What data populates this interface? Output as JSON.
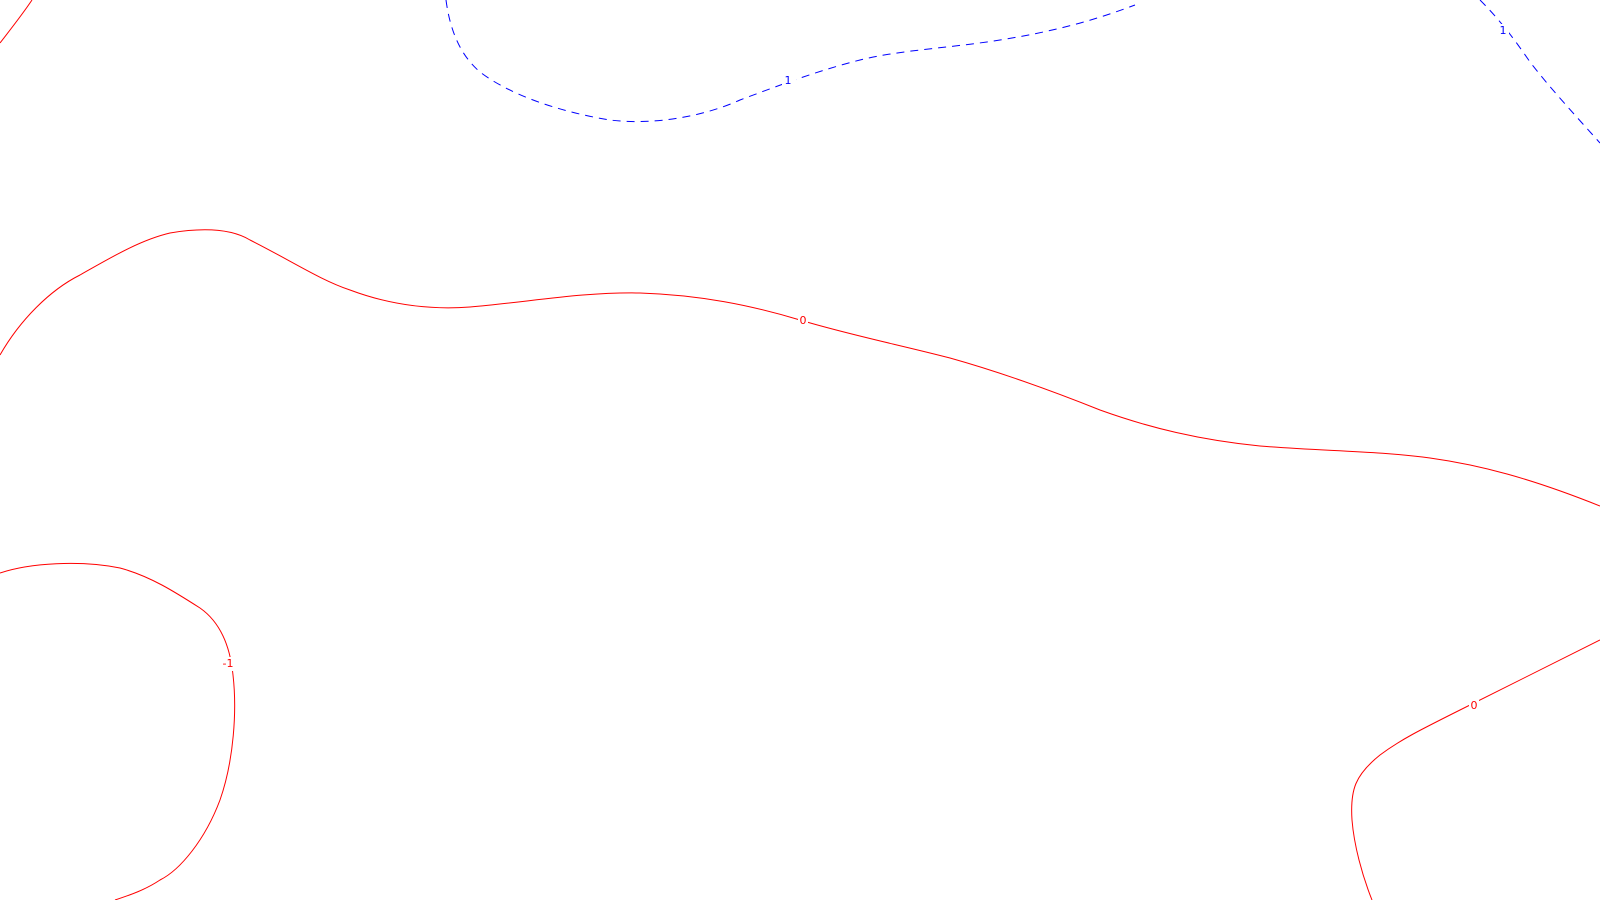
{
  "colors": {
    "background": "#ffffff",
    "positive_contour": "#ff0000",
    "negative_contour": "#0000ff"
  },
  "contours": [
    {
      "id": "contour-red-0-top-left-corner",
      "color_key": "positive_contour",
      "style": "solid"
    },
    {
      "id": "contour-red-0-main",
      "color_key": "positive_contour",
      "style": "solid",
      "label": "0"
    },
    {
      "id": "contour-red-minus1-bottom-left",
      "color_key": "positive_contour",
      "style": "solid",
      "label": "-1"
    },
    {
      "id": "contour-red-0-bottom-right",
      "color_key": "positive_contour",
      "style": "solid",
      "label": "0"
    },
    {
      "id": "contour-blue-top-middle",
      "color_key": "negative_contour",
      "style": "dashed",
      "label": "1"
    },
    {
      "id": "contour-blue-top-right",
      "color_key": "negative_contour",
      "style": "dashed",
      "label": "1"
    }
  ]
}
